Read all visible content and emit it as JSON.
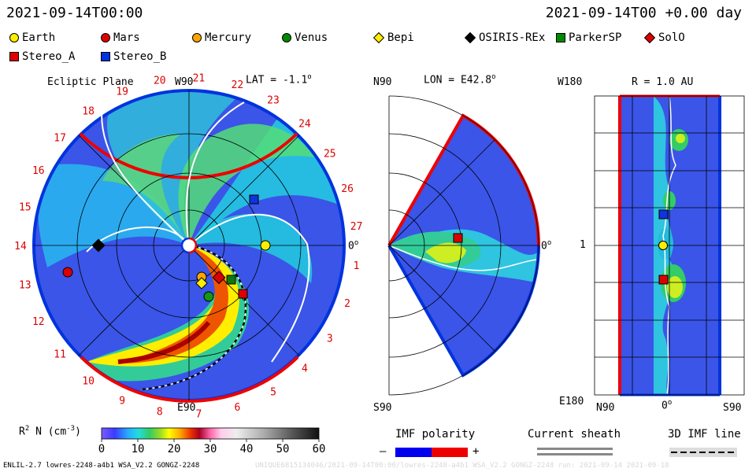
{
  "header": {
    "left_time": "2021-09-14T00:00",
    "right_time": "2021-09-14T00 +0.00 day"
  },
  "legend": [
    {
      "label": "Earth",
      "color": "#ffee00",
      "shape": "circle"
    },
    {
      "label": "Mars",
      "color": "#e00000",
      "shape": "circle"
    },
    {
      "label": "Mercury",
      "color": "#ffa500",
      "shape": "circle"
    },
    {
      "label": "Venus",
      "color": "#008800",
      "shape": "circle"
    },
    {
      "label": "Bepi",
      "color": "#ffee00",
      "shape": "diamond"
    },
    {
      "label": "OSIRIS-REx",
      "color": "#000000",
      "shape": "diamond"
    },
    {
      "label": "ParkerSP",
      "color": "#008800",
      "shape": "square"
    },
    {
      "label": "SolO",
      "color": "#e00000",
      "shape": "diamond"
    },
    {
      "label": "Stereo_A",
      "color": "#e00000",
      "shape": "square"
    },
    {
      "label": "Stereo_B",
      "color": "#0033dd",
      "shape": "square"
    }
  ],
  "panels": {
    "ecliptic": {
      "title": "Ecliptic Plane",
      "top_label": "W90",
      "bottom_label": "E90",
      "right_label": "0",
      "lat_label": "LAT = -1.1"
    },
    "meridional": {
      "top_label": "N90",
      "bottom_label": "S90",
      "right_label": "0",
      "lon_label": "LON = E42.8"
    },
    "radial": {
      "title": "R = 1.0 AU",
      "top_label": "W180",
      "bottom_label": "E180",
      "mid_label": "1",
      "x_left": "N90",
      "x_mid": "0",
      "x_right": "S90"
    }
  },
  "sector_numbers": [
    "1",
    "2",
    "3",
    "4",
    "5",
    "6",
    "7",
    "8",
    "9",
    "10",
    "11",
    "12",
    "13",
    "14",
    "15",
    "16",
    "17",
    "18",
    "19",
    "20",
    "21",
    "22",
    "23",
    "24",
    "25",
    "26",
    "27"
  ],
  "colorbar": {
    "label": "R",
    "unit_label": "N (cm",
    "unit_suffix": ")",
    "ticks": [
      "0",
      "10",
      "20",
      "30",
      "40",
      "50",
      "60"
    ]
  },
  "bottom_legends": {
    "imf_title": "IMF polarity",
    "imf_minus": "–",
    "imf_plus": "+",
    "sheath_title": "Current sheath",
    "imf3d_title": "3D IMF line"
  },
  "footer": {
    "left": "ENLIL-2.7 lowres-2248-a4b1 WSA_V2.2 GONGZ-2248",
    "right": "UNIQUE6815134046/2021-09-14T00:00/lowres-2248-a4b1 WSA_V2.2 GONGZ-2248 run: 2021-09-14 2021-09-18"
  },
  "chart_data": {
    "type": "heatmap",
    "title": "Ecliptic Plane",
    "colorbar_range": [
      0,
      60
    ],
    "colorbar_ticks": [
      0,
      10,
      20,
      30,
      40,
      50,
      60
    ],
    "lat_deg": -1.1,
    "lon_deg": 42.8,
    "radius_au": 1.0,
    "colors": {
      "imf_negative": "#0000ee",
      "imf_positive": "#ee0000"
    }
  }
}
